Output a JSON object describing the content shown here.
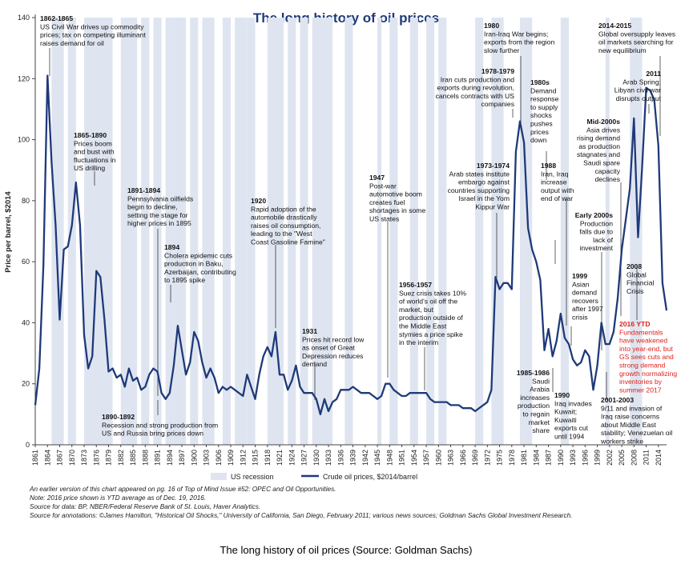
{
  "chart_data": {
    "type": "line",
    "title": "The long history of oil prices",
    "ylabel": "Price per barrel, $2014",
    "ylim": [
      0,
      140
    ],
    "xlim": [
      1861,
      2016
    ],
    "yticks": [
      "0",
      "20",
      "40",
      "60",
      "80",
      "100",
      "120",
      "140"
    ],
    "xticks": [
      "1861",
      "1864",
      "1867",
      "1870",
      "1873",
      "1876",
      "1879",
      "1882",
      "1885",
      "1888",
      "1891",
      "1894",
      "1897",
      "1900",
      "1903",
      "1906",
      "1909",
      "1912",
      "1915",
      "1918",
      "1921",
      "1924",
      "1927",
      "1930",
      "1933",
      "1936",
      "1939",
      "1942",
      "1945",
      "1948",
      "1951",
      "1954",
      "1957",
      "1960",
      "1963",
      "1966",
      "1969",
      "1972",
      "1975",
      "1978",
      "1981",
      "1984",
      "1987",
      "1990",
      "1993",
      "1996",
      "1999",
      "2002",
      "2005",
      "2008",
      "2011",
      "2014"
    ],
    "series": [
      {
        "name": "Crude oil prices, $2014/barrel",
        "color": "#1f3a7a",
        "x": [
          1861,
          1862,
          1863,
          1864,
          1865,
          1866,
          1867,
          1868,
          1869,
          1870,
          1871,
          1872,
          1873,
          1874,
          1875,
          1876,
          1877,
          1878,
          1879,
          1880,
          1881,
          1882,
          1883,
          1884,
          1885,
          1886,
          1887,
          1888,
          1889,
          1890,
          1891,
          1892,
          1893,
          1894,
          1895,
          1896,
          1897,
          1898,
          1899,
          1900,
          1901,
          1902,
          1903,
          1904,
          1905,
          1906,
          1907,
          1908,
          1909,
          1910,
          1911,
          1912,
          1913,
          1914,
          1915,
          1916,
          1917,
          1918,
          1919,
          1920,
          1921,
          1922,
          1923,
          1924,
          1925,
          1926,
          1927,
          1928,
          1929,
          1930,
          1931,
          1932,
          1933,
          1934,
          1935,
          1936,
          1937,
          1938,
          1939,
          1940,
          1941,
          1942,
          1943,
          1944,
          1945,
          1946,
          1947,
          1948,
          1949,
          1950,
          1951,
          1952,
          1953,
          1954,
          1955,
          1956,
          1957,
          1958,
          1959,
          1960,
          1961,
          1962,
          1963,
          1964,
          1965,
          1966,
          1967,
          1968,
          1969,
          1970,
          1971,
          1972,
          1973,
          1974,
          1975,
          1976,
          1977,
          1978,
          1979,
          1980,
          1981,
          1982,
          1983,
          1984,
          1985,
          1986,
          1987,
          1988,
          1989,
          1990,
          1991,
          1992,
          1993,
          1994,
          1995,
          1996,
          1997,
          1998,
          1999,
          2000,
          2001,
          2002,
          2003,
          2004,
          2005,
          2006,
          2007,
          2008,
          2009,
          2010,
          2011,
          2012,
          2013,
          2014,
          2015,
          2016
        ],
        "values": [
          13,
          25,
          59,
          121,
          93,
          72,
          41,
          64,
          65,
          72,
          86,
          72,
          36,
          25,
          29,
          57,
          55,
          41,
          24,
          25,
          22,
          23,
          19,
          25,
          21,
          22,
          18,
          19,
          23,
          25,
          24,
          17,
          15,
          17,
          26,
          39,
          31,
          23,
          27,
          37,
          34,
          27,
          22,
          25,
          22,
          17,
          19,
          18,
          19,
          18,
          17,
          16,
          23,
          19,
          15,
          23,
          29,
          32,
          29,
          37,
          23,
          23,
          18,
          21,
          26,
          19,
          17,
          17,
          17,
          15,
          10,
          15,
          11,
          14,
          15,
          18,
          18,
          18,
          19,
          18,
          17,
          17,
          17,
          16,
          15,
          16,
          20,
          20,
          18,
          17,
          16,
          16,
          17,
          17,
          17,
          17,
          17,
          15,
          14,
          14,
          14,
          14,
          13,
          13,
          13,
          12,
          12,
          12,
          11,
          12,
          13,
          14,
          18,
          55,
          51,
          53,
          53,
          51,
          96,
          106,
          99,
          71,
          64,
          60,
          54,
          31,
          38,
          29,
          34,
          43,
          35,
          33,
          28,
          26,
          27,
          31,
          29,
          18,
          26,
          40,
          33,
          33,
          37,
          48,
          64,
          74,
          84,
          107,
          68,
          91,
          117,
          116,
          113,
          98,
          53,
          44
        ]
      }
    ],
    "recessions": [
      [
        1865,
        1867
      ],
      [
        1869,
        1870
      ],
      [
        1873,
        1879
      ],
      [
        1882,
        1885
      ],
      [
        1887,
        1888
      ],
      [
        1890,
        1891
      ],
      [
        1893,
        1894
      ],
      [
        1895,
        1897
      ],
      [
        1899,
        1900
      ],
      [
        1902,
        1904
      ],
      [
        1907,
        1908
      ],
      [
        1910,
        1912
      ],
      [
        1913,
        1914
      ],
      [
        1918,
        1919
      ],
      [
        1920,
        1921
      ],
      [
        1923,
        1924
      ],
      [
        1926,
        1927
      ],
      [
        1929,
        1933
      ],
      [
        1937,
        1938
      ],
      [
        1945,
        1945
      ],
      [
        1948,
        1949
      ],
      [
        1953,
        1954
      ],
      [
        1957,
        1958
      ],
      [
        1960,
        1961
      ],
      [
        1969,
        1970
      ],
      [
        1973,
        1975
      ],
      [
        1980,
        1980
      ],
      [
        1981,
        1982
      ],
      [
        1990,
        1991
      ],
      [
        2001,
        2001
      ],
      [
        2007,
        2009
      ]
    ],
    "legend": [
      {
        "label": "US recession"
      },
      {
        "label": "Crude oil prices, $2014/barrel"
      }
    ],
    "annotations": [
      {
        "id": "a1",
        "year": "1862-1865",
        "lines": [
          "US Civil War drives up commodity",
          "prices; tax on competing illuminant",
          "raises demand for oil"
        ]
      },
      {
        "id": "a2",
        "year": "1865-1890",
        "lines": [
          "Prices boom",
          "and bust with",
          "fluctuations in",
          "US drilling"
        ]
      },
      {
        "id": "a3",
        "year": "1891-1894",
        "lines": [
          "Pennsylvania oilfields",
          "begin to decline,",
          "setting the stage for",
          "higher prices in 1895"
        ]
      },
      {
        "id": "a4",
        "year": "1894",
        "lines": [
          "Cholera epidemic cuts",
          "production in Baku,",
          "Azerbaijan, contributing",
          "to 1895 spike"
        ]
      },
      {
        "id": "a5",
        "year": "1890-1892",
        "lines": [
          "Recession and strong production from",
          "US and Russia bring prices down"
        ]
      },
      {
        "id": "a6",
        "year": "1920",
        "lines": [
          "Rapid adoption of the",
          "automobile drastically",
          "raises oil consumption,",
          "leading to the \"West",
          "Coast Gasoline Famine\""
        ]
      },
      {
        "id": "a7",
        "year": "1931",
        "lines": [
          "Prices hit record low",
          "as onset of Great",
          "Depression reduces",
          "demand"
        ]
      },
      {
        "id": "a8",
        "year": "1947",
        "lines": [
          "Post-war",
          "automotive boom",
          "creates fuel",
          "shortages in some",
          "US states"
        ]
      },
      {
        "id": "a9",
        "year": "1956-1957",
        "lines": [
          "Suez crisis takes 10%",
          "of world's oil off the",
          "market, but",
          "production outside of",
          "the Middle East",
          "stymies a price spike",
          "in the interim"
        ]
      },
      {
        "id": "a10",
        "year": "1973-1974",
        "lines": [
          "Arab states institute",
          "embargo against",
          "countries supporting",
          "Israel in the Yom",
          "Kippur War"
        ]
      },
      {
        "id": "a11",
        "year": "1978-1979",
        "lines": [
          "Iran cuts production and",
          "exports during revolution,",
          "cancels contracts with US",
          "companies"
        ]
      },
      {
        "id": "a12",
        "year": "1980",
        "lines": [
          "Iran-Iraq War begins;",
          "exports from the region",
          "slow further"
        ]
      },
      {
        "id": "a13",
        "year": "1980s",
        "lines": [
          "Demand",
          "response",
          "to supply",
          "shocks",
          "pushes",
          "prices",
          "down"
        ]
      },
      {
        "id": "a14",
        "year": "1988",
        "lines": [
          "Iran, Iraq",
          "increase",
          "output with",
          "end of war"
        ]
      },
      {
        "id": "a15",
        "year": "1985-1986",
        "lines": [
          "Saudi",
          "Arabia",
          "increases",
          "production",
          "to regain",
          "market",
          "share"
        ]
      },
      {
        "id": "a16",
        "year": "1990",
        "lines": [
          "Iraq invades",
          "Kuwait;",
          "Kuwaiti",
          "exports cut",
          "until 1994"
        ]
      },
      {
        "id": "a17",
        "year": "1999",
        "lines": [
          "Asian",
          "demand",
          "recovers",
          "after 1997",
          "crisis"
        ]
      },
      {
        "id": "a18",
        "year": "Early 2000s",
        "lines": [
          "Production",
          "falls due to",
          "lack of",
          "investment"
        ]
      },
      {
        "id": "a19",
        "year": "2001-2003",
        "lines": [
          "9/11 and invasion of",
          "Iraq raise concerns",
          "about Middle East",
          "stability; Venezuelan oil",
          "workers strike"
        ]
      },
      {
        "id": "a20",
        "year": "Mid-2000s",
        "lines": [
          "Asia drives",
          "rising demand",
          "as production",
          "stagnates and",
          "Saudi spare",
          "capacity",
          "declines"
        ]
      },
      {
        "id": "a21",
        "year": "2008",
        "lines": [
          "Global",
          "Financial",
          "Crisis"
        ]
      },
      {
        "id": "a22",
        "year": "2011",
        "lines": [
          "Arab Spring;",
          "Libyan civil war",
          "disrupts output"
        ]
      },
      {
        "id": "a23",
        "year": "2014-2015",
        "lines": [
          "Global oversupply leaves",
          "oil markets searching for",
          "new equilibrium"
        ]
      },
      {
        "id": "a24",
        "year": "2016 YTD",
        "lines": [
          "Fundamentals",
          "have weakened",
          "into year-end, but",
          "GS sees cuts and",
          "strong demand",
          "growth normalizing",
          "inventories by",
          "summer 2017"
        ]
      }
    ]
  },
  "notes": [
    "An earlier version of this chart appeared on pg. 16 of Top of Mind Issue #52: OPEC and Oil Opportunities.",
    "Note: 2016 price shown is YTD average as of Dec. 19, 2016.",
    "Source for data: BP, NBER/Federal Reserve Bank of St. Louis, Haver Analytics.",
    "Source for annotations: ©James Hamilton, \"Historical Oil Shocks,\" University of California, San Diego, February 2011; various news sources; Goldman Sachs Global Investment Research."
  ],
  "caption": "The long history of oil prices (Source: Goldman Sachs)",
  "colors": {
    "line": "#1f3a7a",
    "recession": "#dfe5f0",
    "annotation_red": "#e0201b",
    "title": "#1f3a7a"
  }
}
